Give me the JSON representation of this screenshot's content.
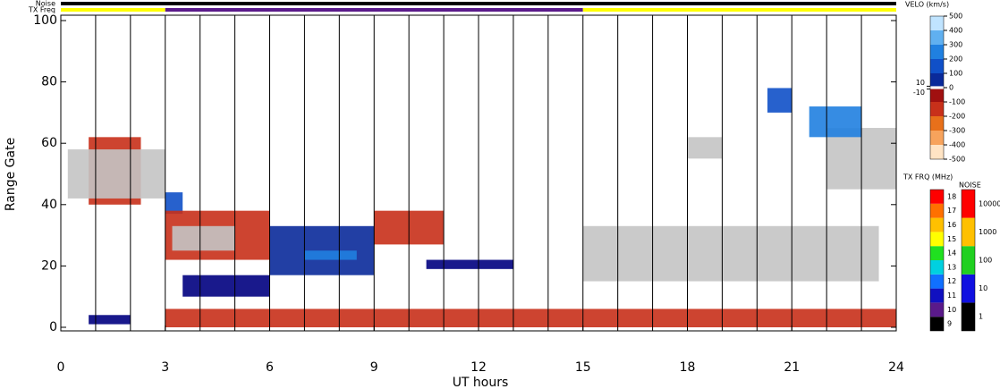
{
  "chart_data": {
    "type": "range-time",
    "xlabel": "UT hours",
    "ylabel": "Range Gate",
    "xlim": [
      0,
      24
    ],
    "xticks": [
      0,
      3,
      6,
      9,
      12,
      15,
      18,
      21,
      24
    ],
    "ylim": [
      0,
      100
    ],
    "yticks": [
      0,
      20,
      40,
      60,
      80,
      100
    ],
    "noise_label": "Noise",
    "txfreq_label": "TX Freq",
    "noise_bar_color": "#000000",
    "txfreq_segments": [
      {
        "x": [
          0,
          3
        ],
        "color": "#ffff00"
      },
      {
        "x": [
          3,
          15
        ],
        "color": "#5a1a8a"
      },
      {
        "x": [
          15,
          24
        ],
        "color": "#ffff00"
      }
    ],
    "ground_scatter_color": "#c4c4c4",
    "regions": [
      {
        "x": [
          0.8,
          2.3
        ],
        "gates": [
          40,
          62
        ],
        "velocity": -150
      },
      {
        "x": [
          0.2,
          3.0
        ],
        "gates": [
          42,
          58
        ],
        "velocity": null
      },
      {
        "x": [
          0.8,
          2.0
        ],
        "gates": [
          1,
          4
        ],
        "velocity": 50
      },
      {
        "x": [
          3.0,
          3.5
        ],
        "gates": [
          37,
          44
        ],
        "velocity": 250
      },
      {
        "x": [
          3.0,
          6.0
        ],
        "gates": [
          22,
          38
        ],
        "velocity": -150
      },
      {
        "x": [
          3.2,
          5.0
        ],
        "gates": [
          25,
          33
        ],
        "velocity": null
      },
      {
        "x": [
          3.5,
          6.0
        ],
        "gates": [
          10,
          17
        ],
        "velocity": 50
      },
      {
        "x": [
          6.0,
          9.0
        ],
        "gates": [
          17,
          33
        ],
        "velocity": 150
      },
      {
        "x": [
          7.0,
          8.5
        ],
        "gates": [
          22,
          25
        ],
        "velocity": 350
      },
      {
        "x": [
          9.0,
          11.0
        ],
        "gates": [
          27,
          38
        ],
        "velocity": -150
      },
      {
        "x": [
          10.5,
          13.0
        ],
        "gates": [
          19,
          22
        ],
        "velocity": 50
      },
      {
        "x": [
          3.0,
          24.0
        ],
        "gates": [
          0,
          6
        ],
        "velocity": -150
      },
      {
        "x": [
          15.0,
          23.5
        ],
        "gates": [
          15,
          33
        ],
        "velocity": null
      },
      {
        "x": [
          18.0,
          19.0
        ],
        "gates": [
          55,
          62
        ],
        "velocity": null
      },
      {
        "x": [
          22.0,
          24.0
        ],
        "gates": [
          45,
          65
        ],
        "velocity": null
      },
      {
        "x": [
          20.3,
          21.0
        ],
        "gates": [
          70,
          78
        ],
        "velocity": 250
      },
      {
        "x": [
          21.5,
          23.0
        ],
        "gates": [
          62,
          72
        ],
        "velocity": 350
      }
    ],
    "velocity_scale": {
      "title": "VELO (km/s)",
      "lim": [
        -500,
        500
      ],
      "ticks": [
        500,
        400,
        300,
        200,
        100,
        {
          "value": 0,
          "label": "0"
        },
        -100,
        -200,
        -300,
        -400,
        -500
      ],
      "inner_ticks": [
        10,
        -10
      ],
      "color_stops": [
        {
          "value": -500,
          "color": "#ffe4c4"
        },
        {
          "value": -400,
          "color": "#f7a35c"
        },
        {
          "value": -300,
          "color": "#e8701a"
        },
        {
          "value": -200,
          "color": "#c8301a"
        },
        {
          "value": -100,
          "color": "#a01010"
        },
        {
          "value": -10,
          "color": "#800000"
        },
        {
          "value": 10,
          "color": "#000080"
        },
        {
          "value": 100,
          "color": "#0a2a9a"
        },
        {
          "value": 200,
          "color": "#1050c8"
        },
        {
          "value": 300,
          "color": "#2080e0"
        },
        {
          "value": 400,
          "color": "#60b0f0"
        },
        {
          "value": 500,
          "color": "#c0e4ff"
        }
      ]
    },
    "txfreq_scale": {
      "title": "TX FRQ (MHz)",
      "levels": [
        9,
        10,
        11,
        12,
        13,
        14,
        15,
        16,
        17,
        18
      ],
      "colors": [
        "#000000",
        "#5a1a8a",
        "#1010c0",
        "#1070ff",
        "#00d0e0",
        "#20e020",
        "#ffff00",
        "#ffc000",
        "#ff7000",
        "#ff0000"
      ]
    },
    "noise_scale": {
      "title": "NOISE",
      "levels": [
        1,
        10,
        100,
        1000,
        10000
      ],
      "colors": [
        "#000000",
        "#1010e0",
        "#20d020",
        "#ffc000",
        "#ff0000"
      ]
    }
  }
}
